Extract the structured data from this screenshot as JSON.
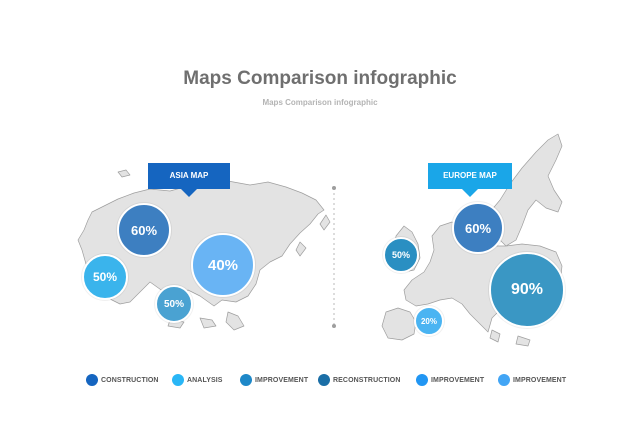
{
  "header": {
    "title": "Maps Comparison infographic",
    "subtitle": "Maps Comparison infographic"
  },
  "maps": {
    "asia": {
      "label": "ASIA MAP",
      "bubbles": [
        {
          "id": "asia-1",
          "value": "60%",
          "color": "#3d7fc1"
        },
        {
          "id": "asia-2",
          "value": "50%",
          "color": "#3ab4ec"
        },
        {
          "id": "asia-3",
          "value": "40%",
          "color": "#69b4f4"
        },
        {
          "id": "asia-4",
          "value": "50%",
          "color": "#4aa2d2"
        }
      ]
    },
    "europe": {
      "label": "EUROPE MAP",
      "bubbles": [
        {
          "id": "europe-1",
          "value": "60%",
          "color": "#3d7fc1"
        },
        {
          "id": "europe-2",
          "value": "50%",
          "color": "#2a8fc2"
        },
        {
          "id": "europe-3",
          "value": "20%",
          "color": "#4ab4f2"
        },
        {
          "id": "europe-4",
          "value": "90%",
          "color": "#3a97c4"
        }
      ]
    }
  },
  "legend": [
    {
      "label": "CONSTRUCTION",
      "color": "#1565c0"
    },
    {
      "label": "ANALYSIS",
      "color": "#29b6f6"
    },
    {
      "label": "IMPROVEMENT",
      "color": "#1e88c8"
    },
    {
      "label": "RECONSTRUCTION",
      "color": "#1a6ea6"
    },
    {
      "label": "IMPROVEMENT",
      "color": "#2196f3"
    },
    {
      "label": "IMPROVEMENT",
      "color": "#42a5f5"
    }
  ]
}
